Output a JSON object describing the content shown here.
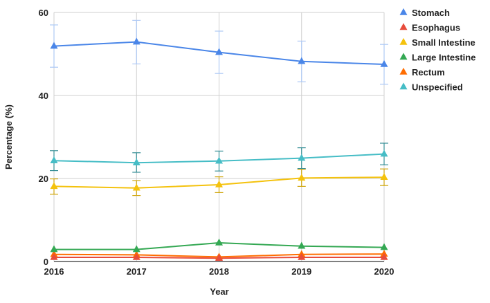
{
  "chart_data": {
    "type": "line",
    "title": "",
    "xlabel": "Year",
    "ylabel": "Percentage (%)",
    "x": [
      "2016",
      "2017",
      "2018",
      "2019",
      "2020"
    ],
    "ylim": [
      0,
      60
    ],
    "yticks": [
      0,
      20,
      40,
      60
    ],
    "grid": true,
    "legend_position": "right",
    "marker": "triangle",
    "series": [
      {
        "name": "Stomach",
        "color": "#4a86e8",
        "values": [
          51.9,
          52.9,
          50.4,
          48.2,
          47.5
        ],
        "error_low": [
          46.8,
          47.6,
          45.3,
          43.3,
          42.7
        ],
        "error_high": [
          57.0,
          58.1,
          55.5,
          53.1,
          52.3
        ]
      },
      {
        "name": "Esophagus",
        "color": "#e74c3c",
        "values": [
          1.0,
          1.0,
          0.8,
          1.0,
          1.0
        ],
        "error_low": null,
        "error_high": null
      },
      {
        "name": "Small Intestine",
        "color": "#f4c20d",
        "values": [
          18.1,
          17.7,
          18.5,
          20.1,
          20.3
        ],
        "error_low": [
          16.2,
          15.9,
          16.6,
          18.1,
          18.3
        ],
        "error_high": [
          19.9,
          19.5,
          20.4,
          22.2,
          22.3
        ]
      },
      {
        "name": "Large Intestine",
        "color": "#34a853",
        "values": [
          2.9,
          2.9,
          4.5,
          3.7,
          3.4
        ],
        "error_low": null,
        "error_high": null
      },
      {
        "name": "Rectum",
        "color": "#ff6d01",
        "values": [
          1.7,
          1.6,
          1.1,
          1.7,
          1.8
        ],
        "error_low": null,
        "error_high": null
      },
      {
        "name": "Unspecified",
        "color": "#46bdc6",
        "values": [
          24.3,
          23.8,
          24.2,
          24.9,
          25.9
        ],
        "error_low": [
          21.9,
          21.5,
          21.8,
          22.4,
          23.3
        ],
        "error_high": [
          26.7,
          26.2,
          26.6,
          27.4,
          28.5
        ]
      }
    ]
  }
}
